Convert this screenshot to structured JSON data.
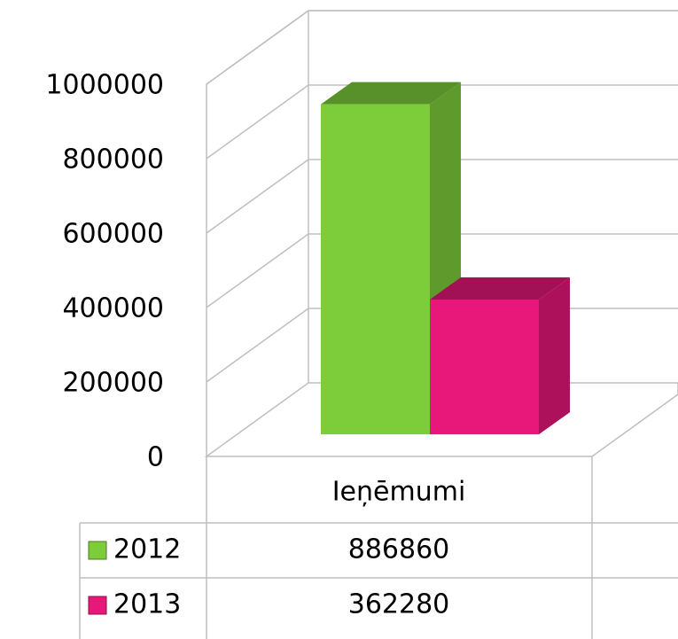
{
  "chart_data": {
    "type": "bar3d",
    "categories": [
      "Ieņēmumi"
    ],
    "series": [
      {
        "name": "2012",
        "color": "#7dcd3a",
        "values": [
          886860
        ]
      },
      {
        "name": "2013",
        "color": "#e8177a",
        "values": [
          362280
        ]
      }
    ],
    "ylim": [
      0,
      1000000
    ],
    "yticks": [
      0,
      200000,
      400000,
      600000,
      800000,
      1000000
    ],
    "grid": true
  }
}
